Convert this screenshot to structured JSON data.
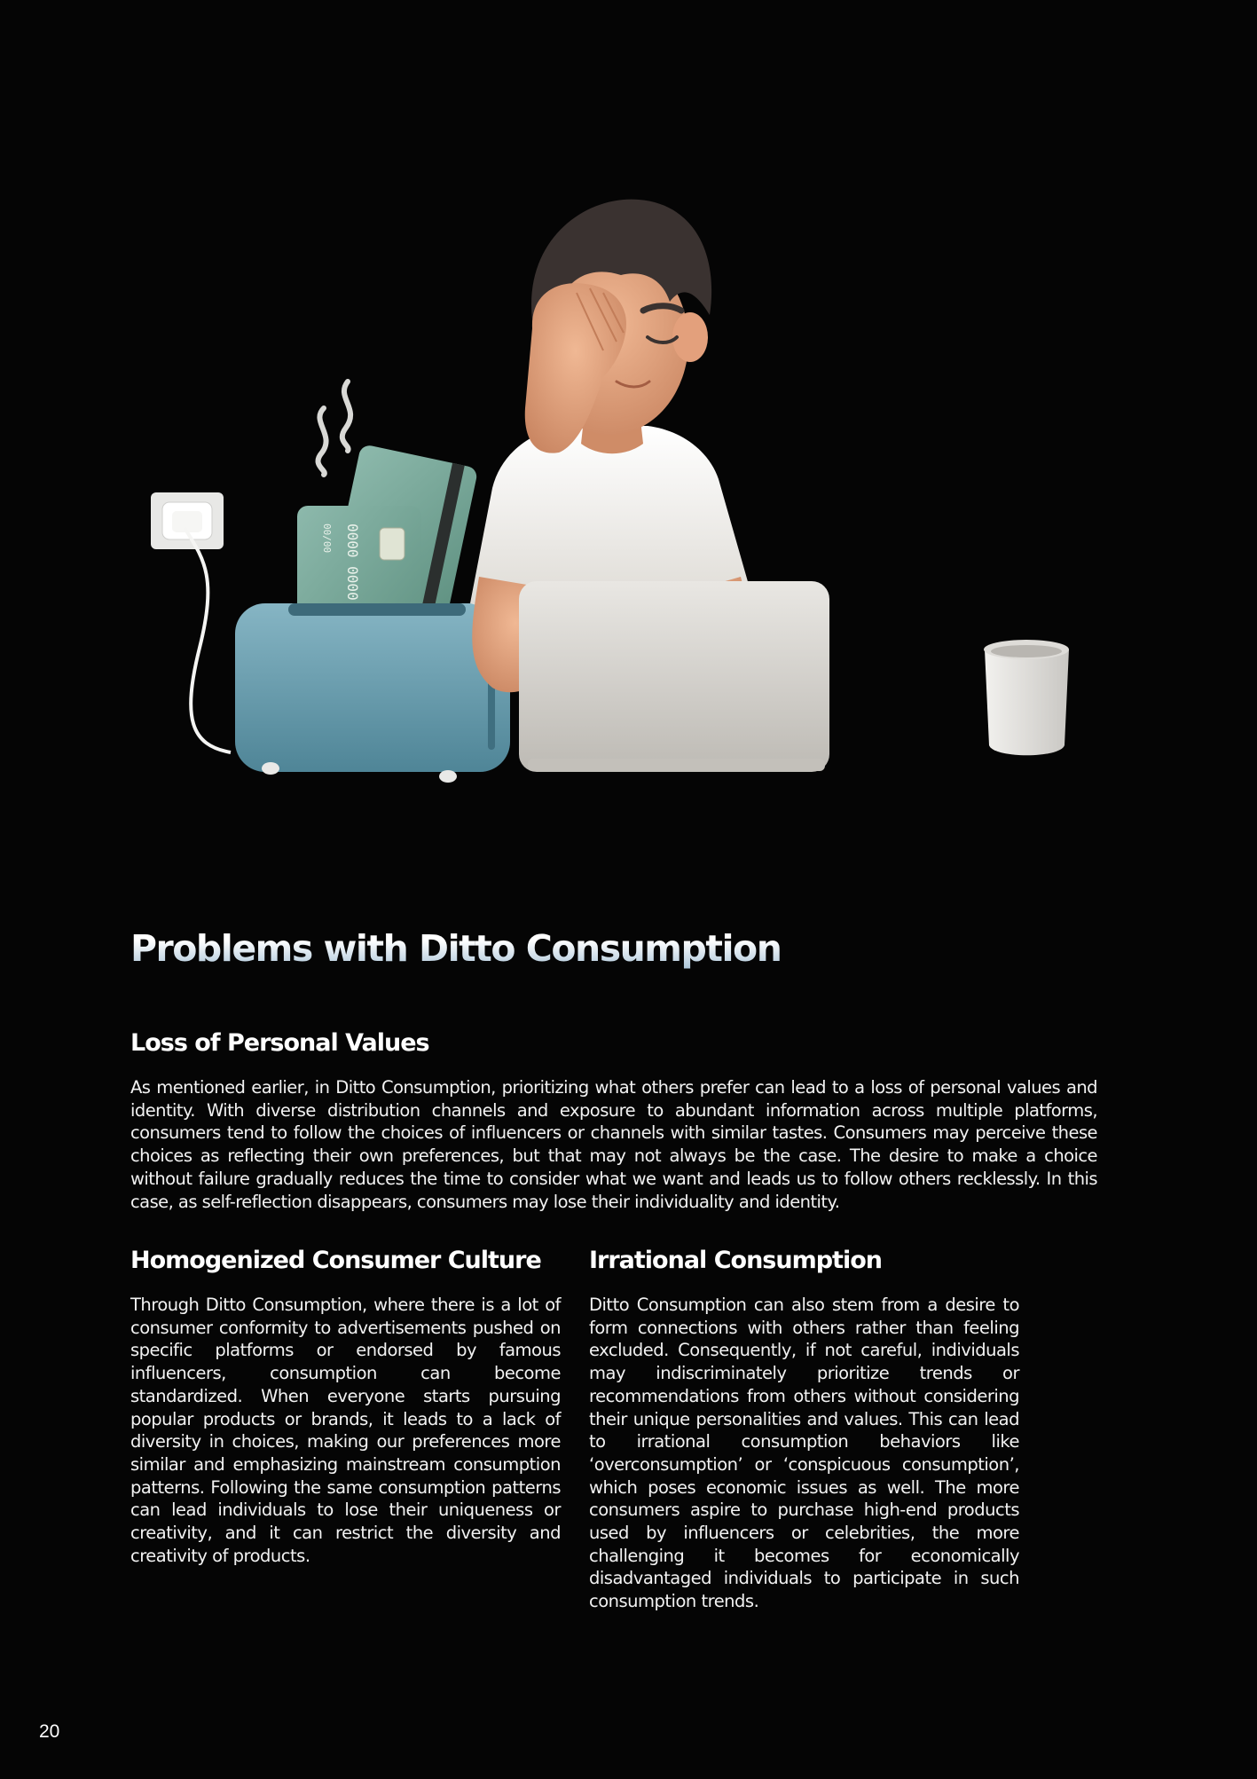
{
  "title": "Problems with Ditto Consumption",
  "sections": {
    "loss": {
      "heading": "Loss of Personal Values",
      "body": "As mentioned earlier, in Ditto Consumption, prioritizing what others prefer can lead to a loss of personal values and identity. With diverse distribution channels and exposure to abundant information across multiple platforms, consumers tend to follow the choices of influencers or channels with similar tastes. Consumers may perceive these choices as reflecting their own preferences, but that may not always be the case. The desire to make a choice without failure gradually reduces the time to consider what we want and leads us to follow others recklessly. In this case, as self-reflection disappears, consumers may lose their individuality and identity."
    },
    "homogenized": {
      "heading": "Homogenized Consumer Culture",
      "body": "Through Ditto Consumption, where there is a lot of consumer conformity to advertisements pushed on specific platforms or endorsed by famous influencers, consumption can become standardized. When everyone starts pursuing popular products or brands, it leads to a lack of diversity in choices, making our preferences more similar and emphasizing mainstream consumption patterns. Following the same consumption patterns can lead individuals to lose their uniqueness or creativity, and it can restrict the diversity and creativity of products."
    },
    "irrational": {
      "heading": "Irrational Consumption",
      "body": "Ditto Consumption can also stem from a desire to form connections with others rather than feeling excluded. Consequently, if not careful, individuals may indiscriminately prioritize trends or recommendations from others without considering their unique personalities and values. This can lead to irrational consumption behaviors like ‘overconsumption’ or ‘conspicuous consumption’, which poses economic issues as well. The more consumers aspire to purchase high-end products used by influencers or celebrities, the more challenging it becomes for economically disadvantaged individuals to participate in such consumption trends."
    }
  },
  "illustration": {
    "card_number_front": "0000 0000 0",
    "card_number_small": "00/00"
  },
  "page_number": "20",
  "colors": {
    "background": "#050505",
    "toaster": "#6e9fb0",
    "card": "#7aa69a",
    "shirt": "#f4f2ee",
    "laptop": "#d8d6d2",
    "skin": "#e2a37d",
    "hair": "#3a3230"
  }
}
